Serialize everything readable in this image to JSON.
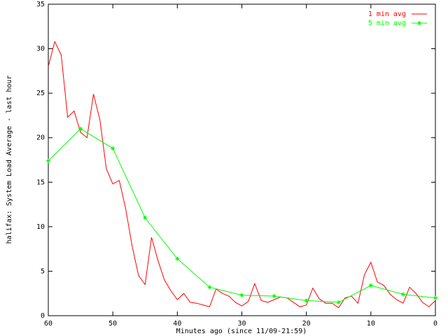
{
  "chart_data": {
    "type": "line",
    "y_label": "halifax: System Load Average - last hour",
    "x_label": "Minutes ago (since 11/09-21:59)",
    "xlim": [
      60,
      0
    ],
    "xticks": [
      60,
      50,
      40,
      30,
      20,
      10,
      0
    ],
    "ylim": [
      0,
      35
    ],
    "yticks": [
      0,
      5,
      10,
      15,
      20,
      25,
      30,
      35
    ],
    "legend": "top-right",
    "grid": false,
    "series": [
      {
        "name": "1 min avg",
        "color": "#ff0000",
        "markers": false,
        "x": [
          60,
          59,
          58,
          57,
          56,
          55,
          54,
          53,
          52,
          51,
          50,
          49,
          48,
          47,
          46,
          45,
          44,
          43,
          42,
          41,
          40,
          39,
          38,
          37,
          36,
          35,
          34,
          33,
          32,
          31,
          30,
          29,
          28,
          27,
          26,
          25,
          24,
          23,
          22,
          21,
          20,
          19,
          18,
          17,
          16,
          15,
          14,
          13,
          12,
          11,
          10,
          9,
          8,
          7,
          6,
          5,
          4,
          3,
          2,
          1,
          0
        ],
        "values": [
          28.0,
          30.8,
          29.3,
          22.3,
          23.0,
          20.6,
          20.0,
          24.9,
          22.0,
          16.5,
          14.8,
          15.2,
          12.0,
          7.8,
          4.5,
          3.5,
          8.8,
          6.2,
          4.0,
          2.8,
          1.8,
          2.5,
          1.5,
          1.4,
          1.2,
          1.0,
          3.0,
          2.5,
          2.2,
          1.5,
          1.1,
          1.6,
          3.6,
          1.7,
          1.5,
          1.8,
          2.1,
          2.0,
          1.5,
          1.0,
          1.2,
          3.1,
          1.9,
          1.4,
          1.4,
          0.9,
          2.0,
          2.2,
          1.4,
          4.6,
          6.0,
          3.8,
          3.4,
          2.4,
          1.8,
          1.4,
          3.2,
          2.5,
          1.5,
          1.0,
          1.7
        ]
      },
      {
        "name": "5 min avg",
        "color": "#00ff00",
        "markers": true,
        "x": [
          60,
          55,
          50,
          45,
          40,
          35,
          30,
          25,
          20,
          15,
          10,
          5,
          0
        ],
        "values": [
          17.4,
          21.0,
          18.8,
          11.0,
          6.4,
          3.2,
          2.3,
          2.2,
          1.7,
          1.5,
          3.4,
          2.4,
          2.0
        ]
      }
    ]
  }
}
